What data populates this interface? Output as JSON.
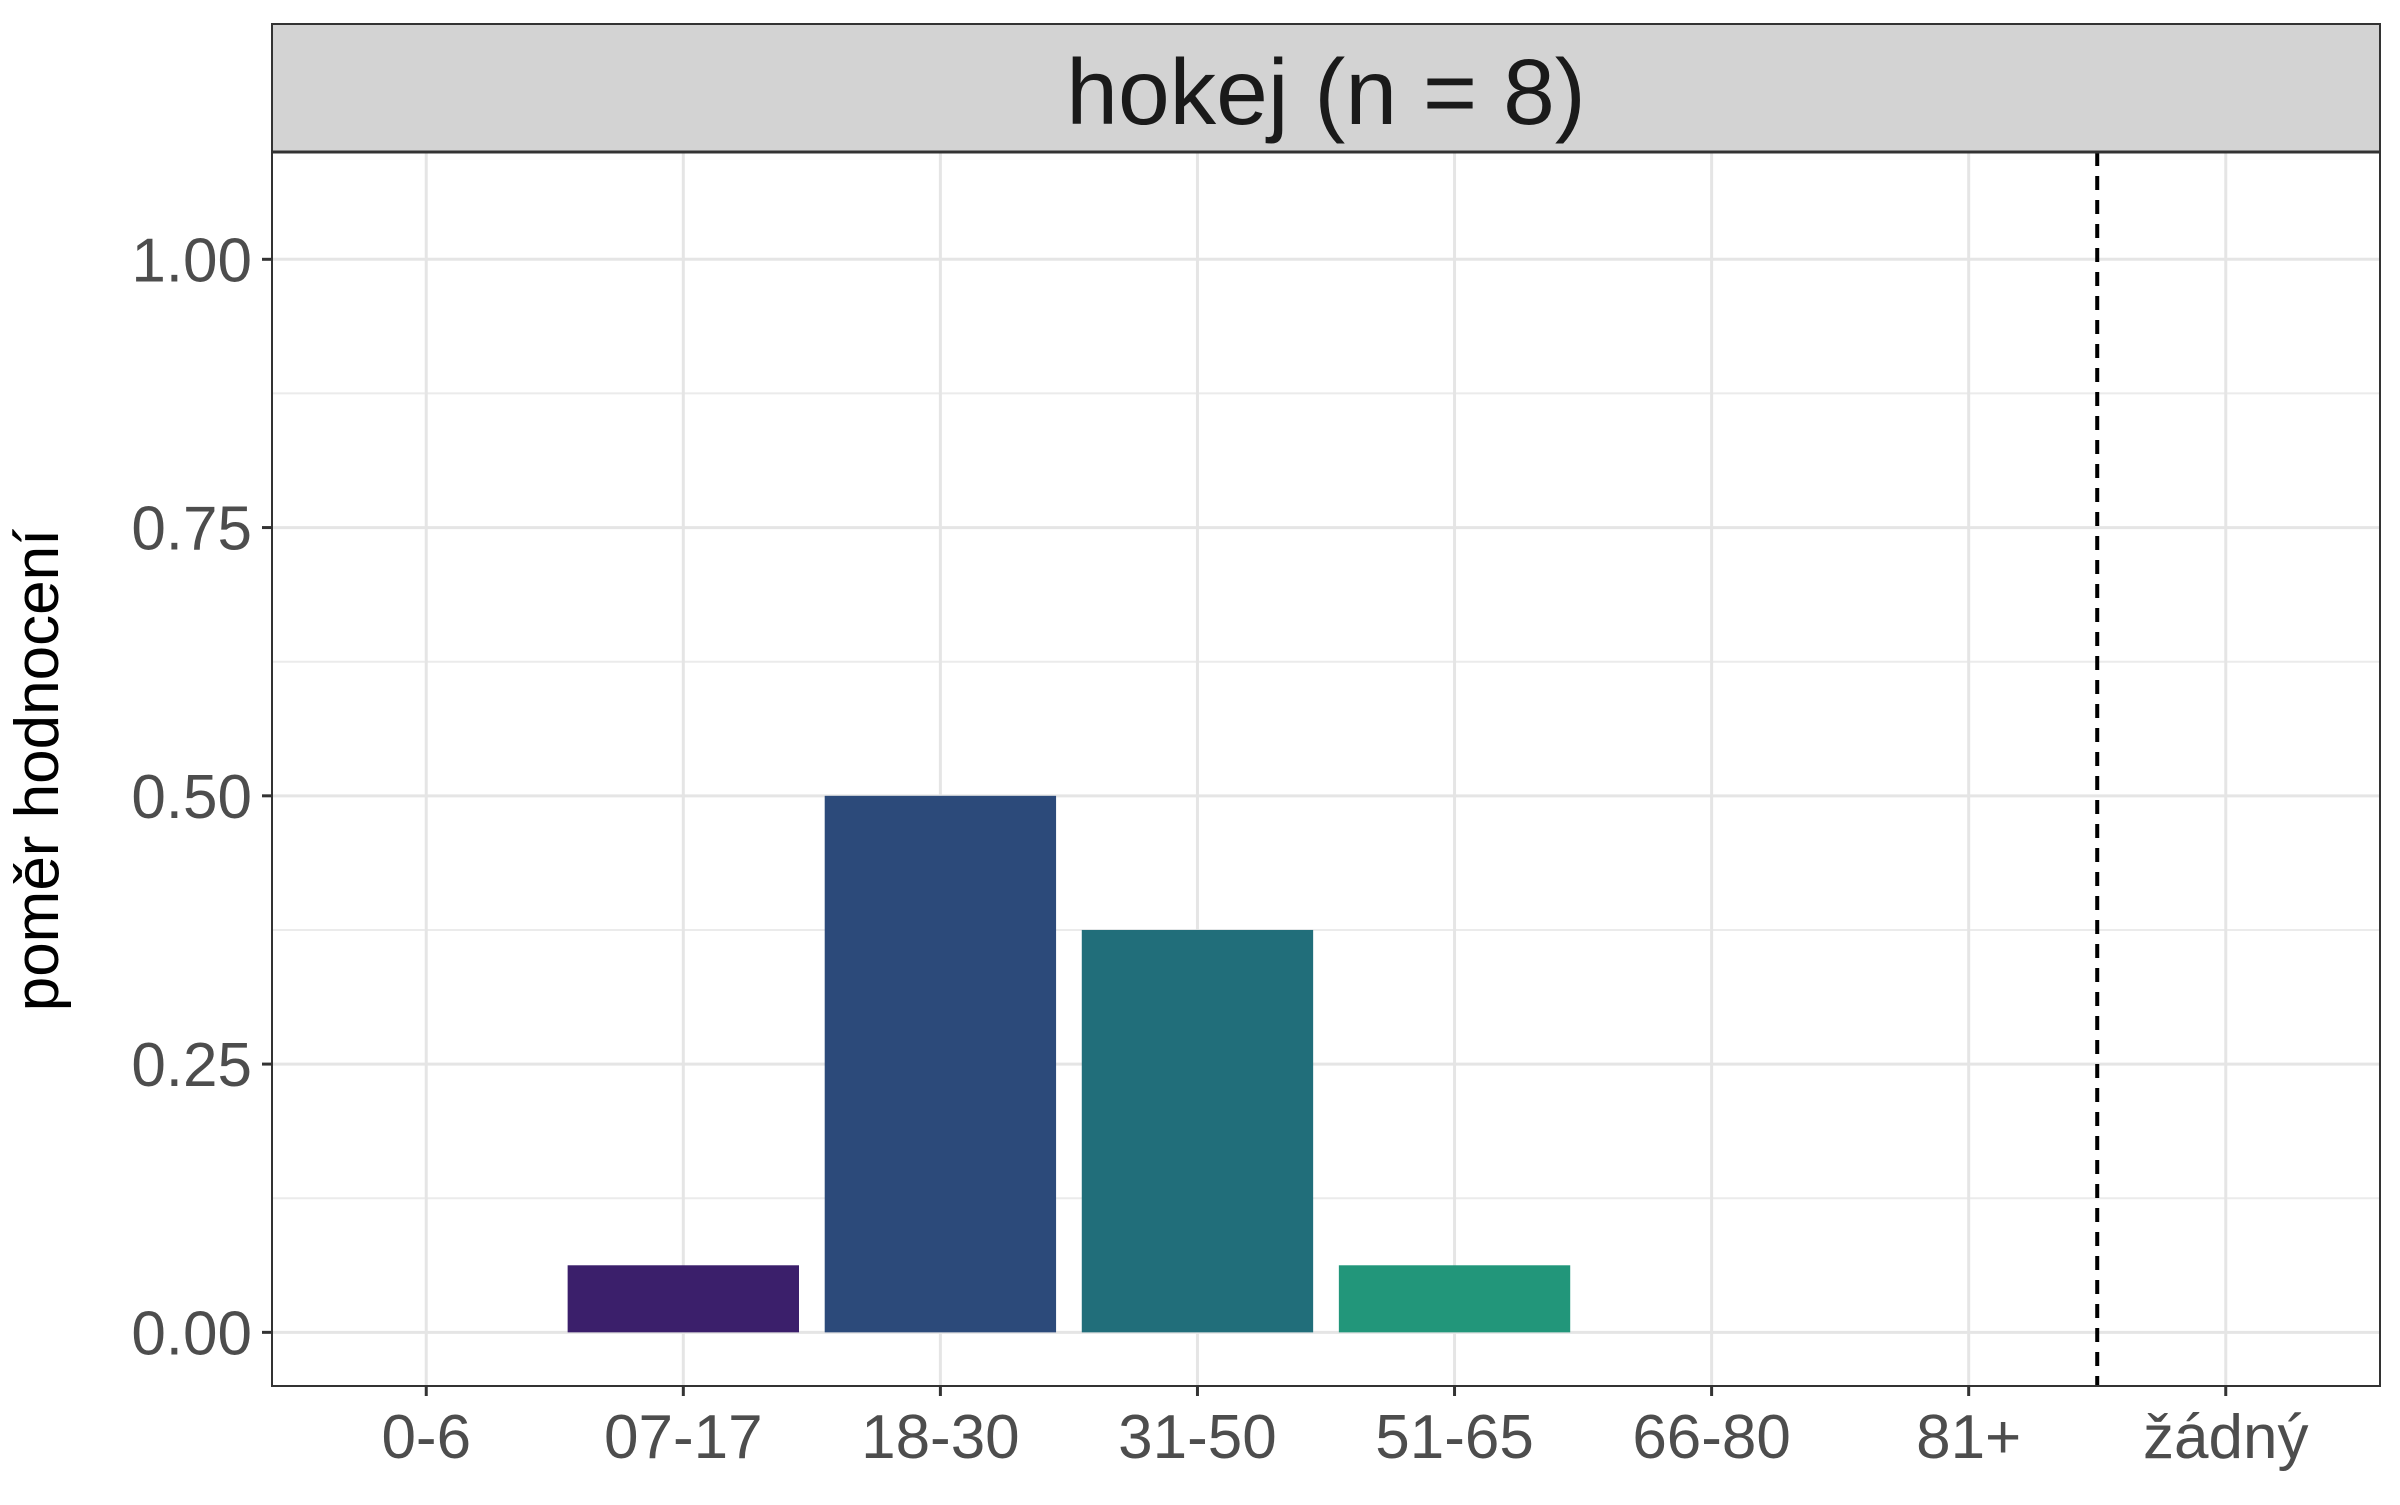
{
  "chart_data": {
    "type": "bar",
    "facet_title": "hokej (n = 8)",
    "categories": [
      "0-6",
      "07-17",
      "18-30",
      "31-50",
      "51-65",
      "66-80",
      "81+",
      "žádný"
    ],
    "values": [
      0,
      0.0625,
      0.5,
      0.375,
      0.0625,
      0,
      0,
      0
    ],
    "ylabel": "poměr hodnocení",
    "xlabel": "",
    "ylim": [
      -0.05,
      1.1
    ],
    "yticks": [
      "0.00",
      "0.25",
      "0.50",
      "0.75",
      "1.00"
    ],
    "ytick_values": [
      0,
      0.25,
      0.5,
      0.75,
      1.0
    ],
    "colors": [
      "#440154",
      "#3b1f6b",
      "#2c4a7a",
      "#216e7a",
      "#22967a",
      "#5cc75f",
      "#a7d83d",
      "#fde725"
    ],
    "reference_line": {
      "between": [
        "81+",
        "žádný"
      ],
      "style": "dashed",
      "color": "#000000"
    },
    "grid": true,
    "legend": "none"
  }
}
